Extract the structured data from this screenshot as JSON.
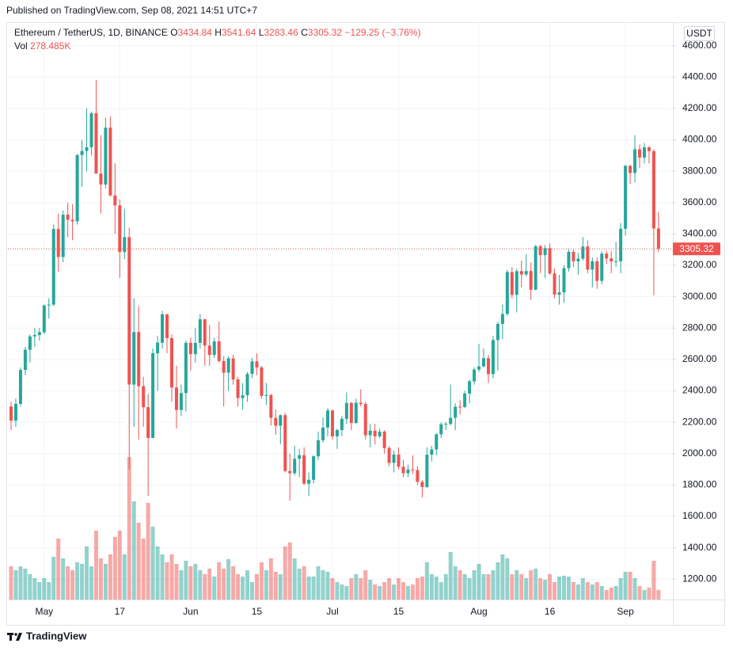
{
  "published": "Published on TradingView.com, Sep 08, 2021 14:51 UTC+7",
  "brand": "TradingView",
  "chart_data": {
    "type": "candlestick",
    "title": "Ethereum / TetherUS, 1D, BINANCE",
    "currency": "USDT",
    "legend_values": [
      {
        "key": "O",
        "value": "3434.84"
      },
      {
        "key": "H",
        "value": "3541.64"
      },
      {
        "key": "L",
        "value": "3283.46"
      },
      {
        "key": "C",
        "value": "3305.32"
      }
    ],
    "change": "−129.25 (−3.76%)",
    "last_label": "3305.32",
    "up_color": "#26a69a",
    "down_color": "#ef5350",
    "grid": true,
    "ylim": [
      1070,
      4750
    ],
    "yticks": [
      {
        "value": 1200,
        "label": "1200.00"
      },
      {
        "value": 1400,
        "label": "1400.00"
      },
      {
        "value": 1600,
        "label": "1600.00"
      },
      {
        "value": 1800,
        "label": "1800.00"
      },
      {
        "value": 2000,
        "label": "2000.00"
      },
      {
        "value": 2200,
        "label": "2200.00"
      },
      {
        "value": 2400,
        "label": "2400.00"
      },
      {
        "value": 2600,
        "label": "2600.00"
      },
      {
        "value": 2800,
        "label": "2800.00"
      },
      {
        "value": 3000,
        "label": "3000.00"
      },
      {
        "value": 3200,
        "label": "3200.00"
      },
      {
        "value": 3400,
        "label": "3400.00"
      },
      {
        "value": 3600,
        "label": "3600.00"
      },
      {
        "value": 3800,
        "label": "3800.00"
      },
      {
        "value": 4000,
        "label": "4000.00"
      },
      {
        "value": 4200,
        "label": "4200.00"
      },
      {
        "value": 4400,
        "label": "4400.00"
      },
      {
        "value": 4600,
        "label": "4600.00"
      }
    ],
    "categories": [
      null,
      null,
      null,
      null,
      null,
      null,
      null,
      "May",
      null,
      null,
      null,
      null,
      null,
      null,
      null,
      null,
      null,
      null,
      null,
      null,
      null,
      null,
      null,
      "17",
      null,
      null,
      null,
      null,
      null,
      null,
      null,
      null,
      null,
      null,
      null,
      null,
      null,
      null,
      "Jun",
      null,
      null,
      null,
      null,
      null,
      null,
      null,
      null,
      null,
      null,
      null,
      null,
      null,
      "15",
      null,
      null,
      null,
      null,
      null,
      null,
      null,
      null,
      null,
      null,
      null,
      null,
      null,
      null,
      null,
      "Jul",
      null,
      null,
      null,
      null,
      null,
      null,
      null,
      null,
      null,
      null,
      null,
      null,
      null,
      "15",
      null,
      null,
      null,
      null,
      null,
      null,
      null,
      null,
      null,
      null,
      null,
      null,
      null,
      null,
      null,
      null,
      "Aug",
      null,
      null,
      null,
      null,
      null,
      null,
      null,
      null,
      null,
      null,
      null,
      null,
      null,
      null,
      "16",
      null,
      null,
      null,
      null,
      null,
      null,
      null,
      null,
      null,
      null,
      null,
      null,
      null,
      null,
      null,
      "Sep",
      null,
      null,
      null,
      null,
      null,
      null,
      null
    ],
    "open": [
      2300,
      2210,
      2317,
      2534,
      2662,
      2747,
      2756,
      2774,
      2945,
      2950,
      3432,
      3253,
      3523,
      3491,
      3481,
      3903,
      3929,
      3953,
      4170,
      3785,
      3715,
      4078,
      3646,
      3582,
      3285,
      3380,
      2440,
      2775,
      2430,
      2296,
      2100,
      2640,
      2707,
      2888,
      2736,
      2421,
      2278,
      2386,
      2706,
      2634,
      2706,
      2856,
      2689,
      2629,
      2715,
      2590,
      2516,
      2607,
      2473,
      2354,
      2372,
      2508,
      2588,
      2549,
      2368,
      2374,
      2228,
      2178,
      2245,
      1889,
      1875,
      1967,
      1990,
      1808,
      1833,
      1983,
      2085,
      2166,
      2275,
      2110,
      2150,
      2222,
      2323,
      2196,
      2324,
      2316,
      2117,
      2146,
      2110,
      2140,
      2036,
      1941,
      1994,
      1916,
      1875,
      1898,
      1895,
      1820,
      1787,
      1993,
      2027,
      2123,
      2187,
      2190,
      2228,
      2299,
      2297,
      2383,
      2461,
      2536,
      2556,
      2608,
      2507,
      2724,
      2827,
      2890,
      3157,
      3012,
      3163,
      3142,
      3164,
      3045,
      3322,
      3265,
      3310,
      3148,
      3013,
      3028,
      3182,
      3286,
      3226,
      3243,
      3320,
      3173,
      3226,
      3101,
      3275,
      3244,
      3225,
      3226,
      3433,
      3834,
      3789,
      3940,
      3887,
      3952,
      3928,
      3434.84
    ],
    "high": [
      2330,
      2350,
      2550,
      2680,
      2760,
      2800,
      2800,
      2950,
      2990,
      3460,
      3530,
      3550,
      3600,
      3590,
      3910,
      4000,
      4200,
      4180,
      4380,
      4030,
      4140,
      4150,
      3850,
      3620,
      3560,
      3440,
      2990,
      2940,
      2490,
      2380,
      2670,
      2750,
      2910,
      2890,
      2760,
      2560,
      2440,
      2720,
      2740,
      2800,
      2890,
      2860,
      2820,
      2740,
      2840,
      2620,
      2620,
      2630,
      2490,
      2450,
      2520,
      2610,
      2640,
      2560,
      2450,
      2380,
      2280,
      2250,
      2260,
      2000,
      2050,
      2030,
      2040,
      1880,
      1990,
      2140,
      2230,
      2290,
      2280,
      2160,
      2240,
      2390,
      2330,
      2350,
      2410,
      2330,
      2190,
      2190,
      2160,
      2150,
      2050,
      2020,
      2040,
      1960,
      1930,
      1990,
      1920,
      1830,
      2040,
      2050,
      2130,
      2200,
      2200,
      2440,
      2320,
      2340,
      2400,
      2470,
      2550,
      2700,
      2670,
      2630,
      2750,
      2840,
      2950,
      3170,
      3190,
      3180,
      3230,
      3270,
      3220,
      3330,
      3330,
      3330,
      3340,
      3180,
      3140,
      3200,
      3300,
      3300,
      3280,
      3380,
      3360,
      3250,
      3250,
      3290,
      3290,
      3290,
      3350,
      3470,
      3840,
      3840,
      4030,
      3970,
      3980,
      3960,
      3940,
      3541.64
    ],
    "low": [
      2150,
      2170,
      2300,
      2500,
      2580,
      2680,
      2720,
      2760,
      2860,
      2940,
      3160,
      3220,
      3380,
      3360,
      3460,
      3700,
      3800,
      3900,
      3790,
      3530,
      3690,
      3640,
      3400,
      3120,
      3240,
      1900,
      2170,
      2090,
      2170,
      1730,
      2100,
      2400,
      2670,
      2640,
      2330,
      2160,
      2240,
      2270,
      2530,
      2580,
      2670,
      2560,
      2560,
      2610,
      2580,
      2300,
      2400,
      2440,
      2300,
      2280,
      2330,
      2480,
      2500,
      2350,
      2310,
      2180,
      2120,
      2060,
      1880,
      1700,
      1860,
      1850,
      1800,
      1730,
      1810,
      1960,
      2070,
      2110,
      2090,
      2030,
      2110,
      2190,
      2150,
      2190,
      2300,
      2090,
      2040,
      2060,
      2100,
      2000,
      1920,
      1880,
      1900,
      1850,
      1850,
      1870,
      1800,
      1720,
      1780,
      1950,
      1990,
      2100,
      2150,
      2180,
      2150,
      2250,
      2290,
      2320,
      2440,
      2520,
      2550,
      2450,
      2480,
      2530,
      2730,
      2880,
      2990,
      2900,
      3060,
      3130,
      2980,
      3040,
      3150,
      3120,
      3140,
      2990,
      2950,
      2960,
      3160,
      3190,
      3140,
      3230,
      3150,
      3060,
      3050,
      3080,
      3210,
      3150,
      3190,
      3150,
      3390,
      3720,
      3730,
      3820,
      3850,
      3850,
      3010,
      3283.46
    ],
    "close": [
      2210,
      2317,
      2534,
      2662,
      2747,
      2756,
      2774,
      2945,
      2950,
      3432,
      3253,
      3523,
      3491,
      3481,
      3903,
      3929,
      3953,
      4170,
      3785,
      3715,
      4078,
      3646,
      3582,
      3285,
      3380,
      2440,
      2775,
      2430,
      2296,
      2100,
      2640,
      2707,
      2888,
      2736,
      2421,
      2278,
      2386,
      2706,
      2634,
      2706,
      2856,
      2689,
      2629,
      2715,
      2590,
      2516,
      2607,
      2473,
      2354,
      2372,
      2508,
      2588,
      2549,
      2368,
      2374,
      2228,
      2178,
      2245,
      1889,
      1875,
      1967,
      1990,
      1808,
      1833,
      1983,
      2085,
      2166,
      2275,
      2110,
      2150,
      2222,
      2323,
      2196,
      2324,
      2316,
      2117,
      2146,
      2110,
      2140,
      2036,
      1941,
      1994,
      1916,
      1875,
      1898,
      1895,
      1820,
      1787,
      1993,
      2027,
      2123,
      2187,
      2190,
      2228,
      2299,
      2297,
      2383,
      2461,
      2536,
      2556,
      2608,
      2507,
      2724,
      2827,
      2890,
      3157,
      3012,
      3163,
      3142,
      3164,
      3045,
      3322,
      3265,
      3310,
      3148,
      3013,
      3028,
      3182,
      3286,
      3226,
      3243,
      3320,
      3173,
      3226,
      3101,
      3275,
      3244,
      3225,
      3226,
      3433,
      3834,
      3789,
      3940,
      3887,
      3952,
      3928,
      3434.84,
      3305.32
    ],
    "volume": {
      "name": "Vol",
      "label": "278.485K",
      "values": [
        966,
        851,
        966,
        897,
        736,
        621,
        506,
        621,
        506,
        1242,
        1771,
        1196,
        966,
        851,
        1081,
        1035,
        1541,
        966,
        2001,
        1196,
        1035,
        1311,
        1817,
        2001,
        1311,
        4140,
        2852,
        2231,
        1771,
        2806,
        2116,
        1541,
        1311,
        1081,
        1311,
        1035,
        851,
        1127,
        966,
        1035,
        851,
        736,
        897,
        667,
        1081,
        897,
        1173,
        966,
        736,
        667,
        851,
        506,
        736,
        1081,
        851,
        1196,
        805,
        736,
        1541,
        1656,
        1196,
        897,
        966,
        667,
        667,
        966,
        851,
        805,
        621,
        506,
        437,
        391,
        621,
        736,
        621,
        851,
        575,
        437,
        391,
        506,
        621,
        437,
        621,
        506,
        391,
        437,
        621,
        667,
        1081,
        736,
        667,
        506,
        736,
        1380,
        966,
        851,
        736,
        621,
        851,
        1035,
        736,
        736,
        851,
        1081,
        1311,
        1196,
        736,
        851,
        736,
        621,
        851,
        897,
        621,
        575,
        736,
        506,
        667,
        690,
        667,
        506,
        437,
        621,
        506,
        437,
        506,
        391,
        276,
        345,
        391,
        621,
        805,
        805,
        621,
        391,
        276,
        345,
        1127,
        278.485
      ]
    }
  }
}
